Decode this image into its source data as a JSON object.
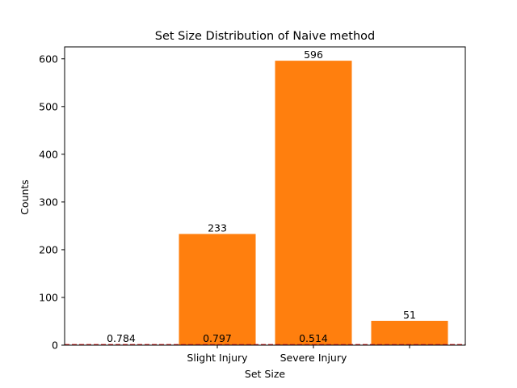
{
  "chart_data": {
    "type": "bar",
    "title": "Set Size Distribution of Naive method",
    "xlabel": "Set Size",
    "ylabel": "Counts",
    "ylim": [
      0,
      625
    ],
    "yticks": [
      0,
      100,
      200,
      300,
      400,
      500,
      600
    ],
    "categories": [
      "",
      "Slight Injury",
      "Severe Injury",
      ""
    ],
    "values": [
      0,
      233,
      596,
      51
    ],
    "bar_color": "#ff7f0e",
    "data_labels": [
      "",
      "233",
      "596",
      "51"
    ],
    "secondary_labels": [
      "0.784",
      "0.797",
      "0.514",
      ""
    ],
    "reference_line": {
      "y": 1,
      "style": "dashed",
      "color": "#d62728"
    },
    "grid": false,
    "legend": "none"
  }
}
